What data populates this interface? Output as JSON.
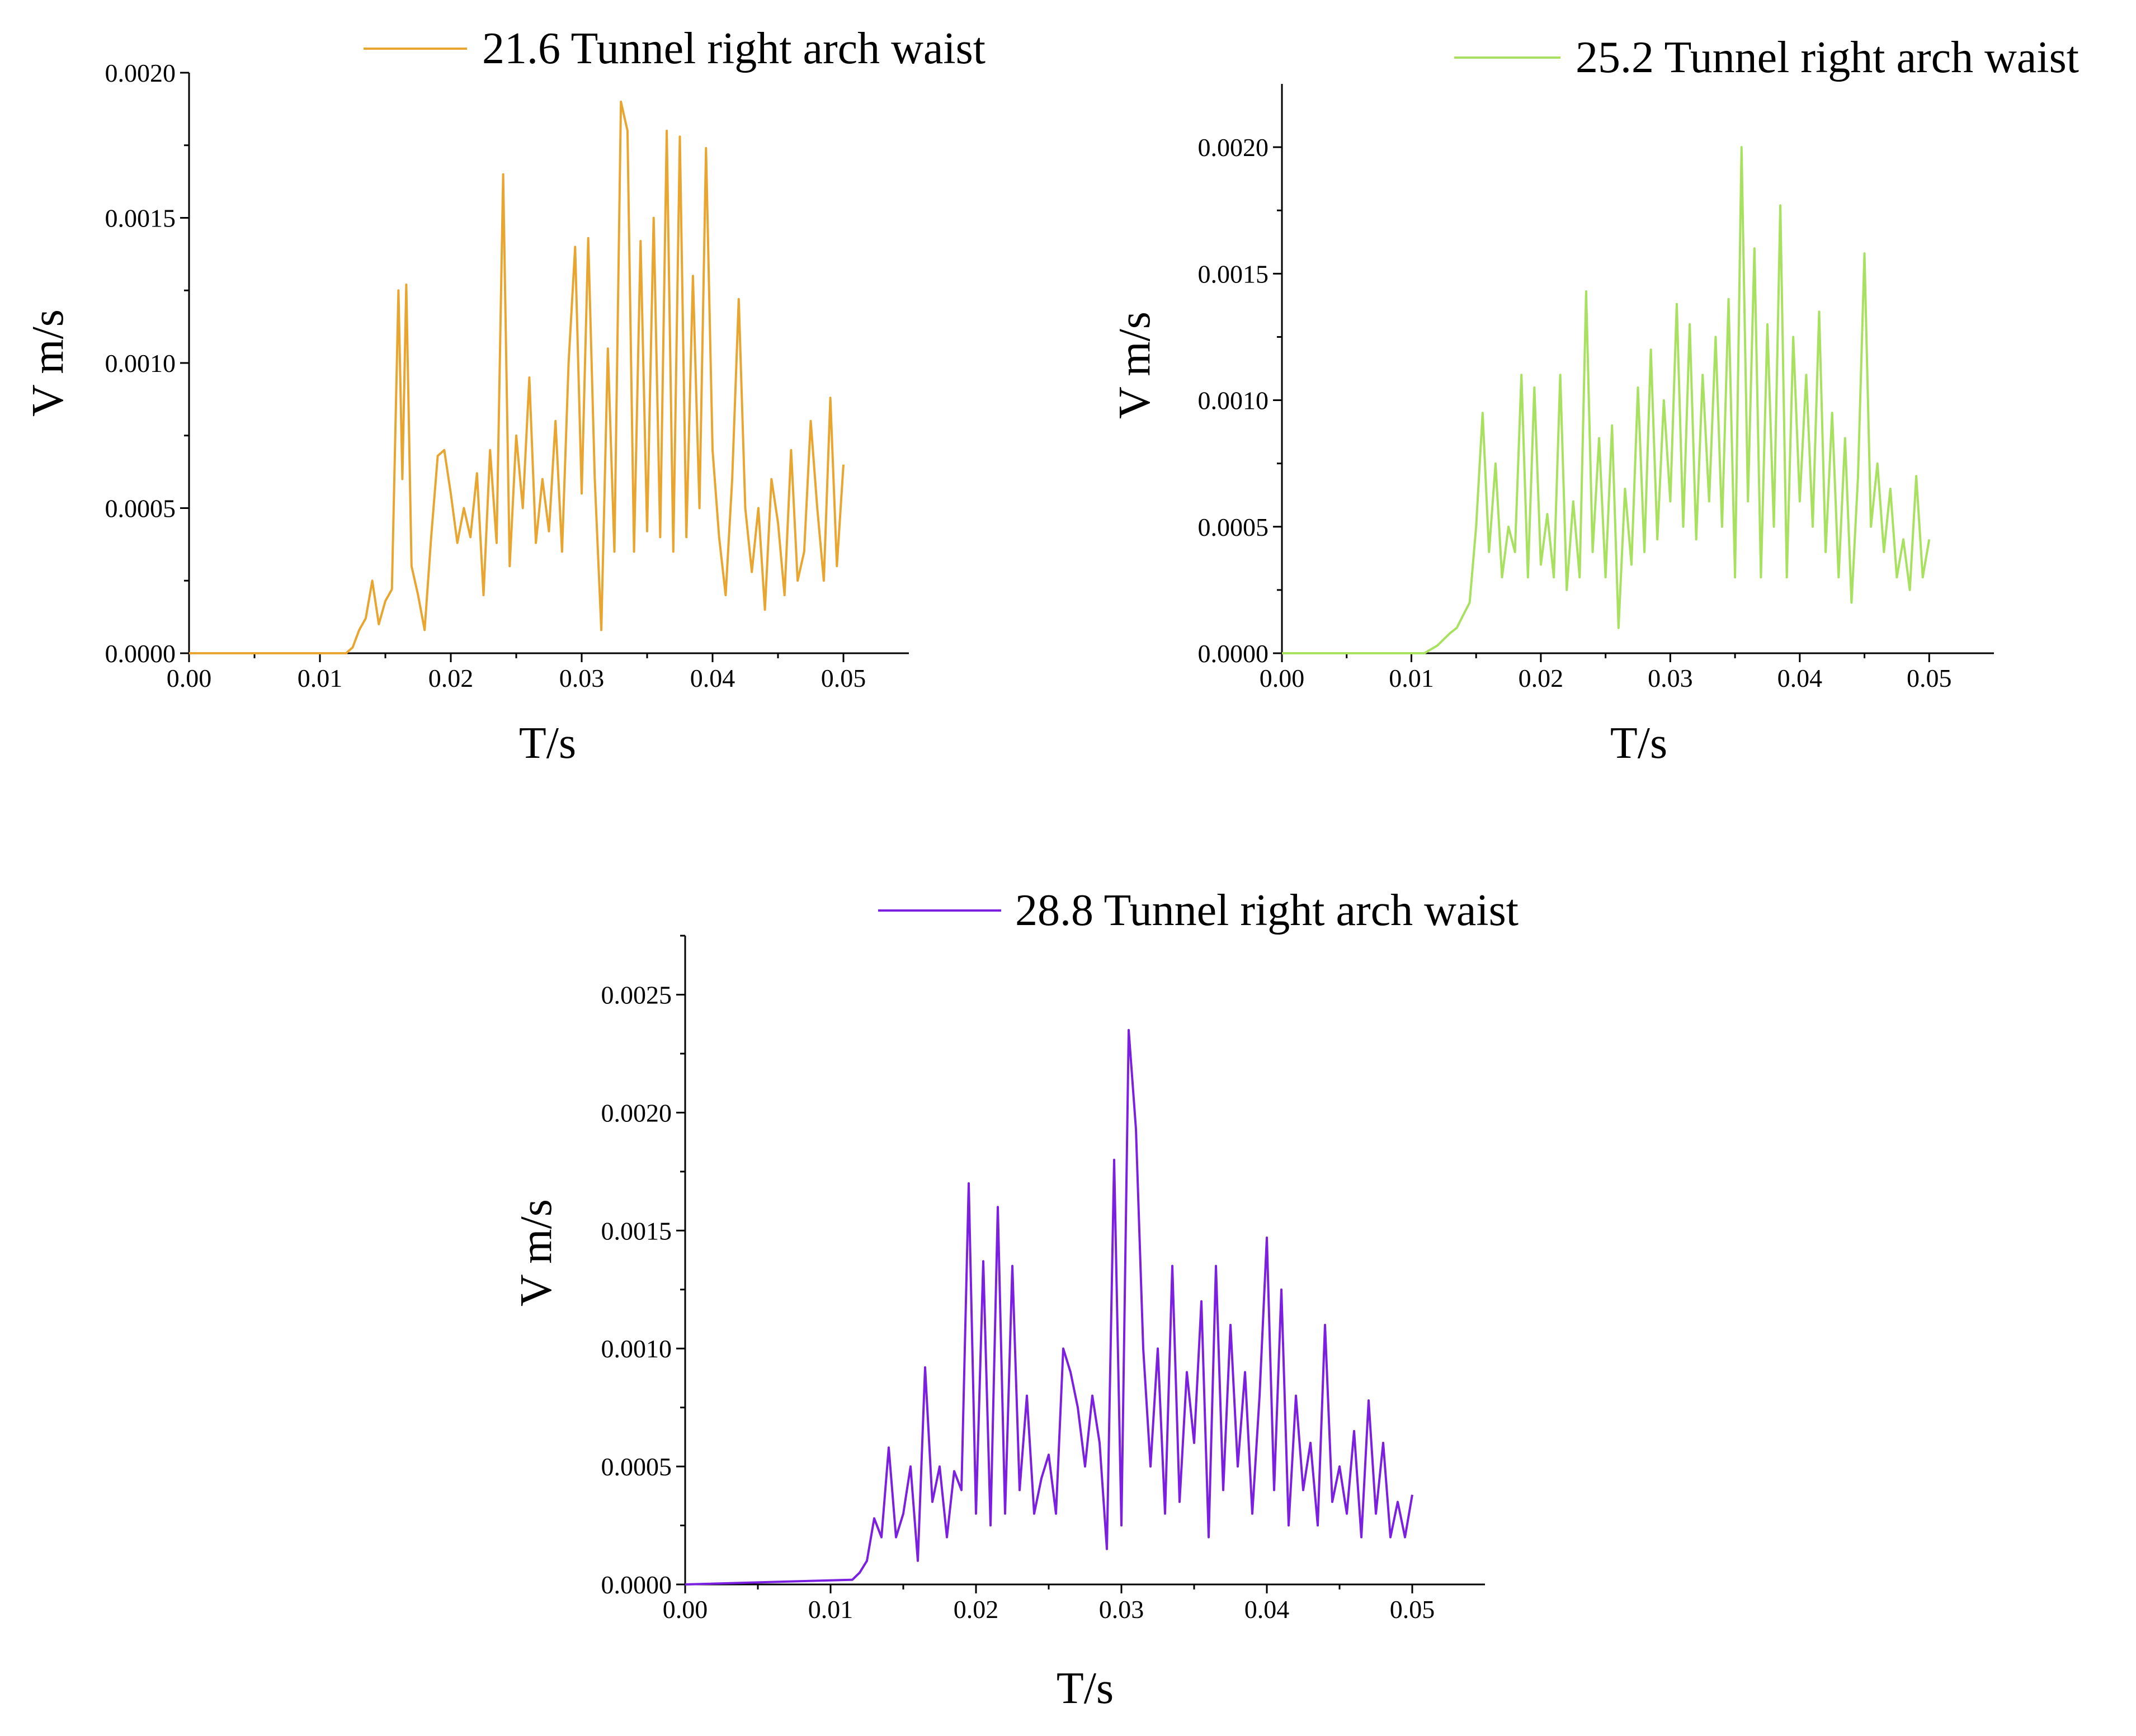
{
  "chart_data": [
    {
      "type": "line",
      "series": [
        {
          "name": "21.6 Tunnel right arch waist",
          "color": "#E8A530"
        }
      ],
      "xlabel": "T/s",
      "ylabel": "V m/s",
      "xlim": [
        0,
        0.055
      ],
      "ylim": [
        0,
        0.002
      ],
      "xticks": [
        0.0,
        0.01,
        0.02,
        0.03,
        0.04,
        0.05
      ],
      "xtick_labels": [
        "0.00",
        "0.01",
        "0.02",
        "0.03",
        "0.04",
        "0.05"
      ],
      "yticks": [
        0,
        0.0005,
        0.001,
        0.0015,
        0.002
      ],
      "ytick_labels": [
        "0.0000",
        "0.0005",
        "0.0010",
        "0.0015",
        "0.0020"
      ],
      "legend_position": "top",
      "x": [
        0,
        0.012,
        0.0125,
        0.013,
        0.0135,
        0.014,
        0.0145,
        0.015,
        0.0155,
        0.016,
        0.0163,
        0.0166,
        0.017,
        0.0175,
        0.018,
        0.0185,
        0.019,
        0.0195,
        0.02,
        0.0205,
        0.021,
        0.0215,
        0.022,
        0.0225,
        0.023,
        0.0235,
        0.024,
        0.0245,
        0.025,
        0.0255,
        0.026,
        0.0265,
        0.027,
        0.0275,
        0.028,
        0.0285,
        0.029,
        0.0295,
        0.03,
        0.0305,
        0.031,
        0.0315,
        0.032,
        0.0325,
        0.033,
        0.0335,
        0.034,
        0.0345,
        0.035,
        0.0355,
        0.036,
        0.0365,
        0.037,
        0.0375,
        0.038,
        0.0385,
        0.039,
        0.0395,
        0.04,
        0.0405,
        0.041,
        0.0415,
        0.042,
        0.0425,
        0.043,
        0.0435,
        0.044,
        0.0445,
        0.045,
        0.0455,
        0.046,
        0.0465,
        0.047,
        0.0475,
        0.048,
        0.0485,
        0.049,
        0.0495,
        0.05
      ],
      "y": [
        0,
        0,
        2e-05,
        8e-05,
        0.00012,
        0.00025,
        0.0001,
        0.00018,
        0.00022,
        0.00125,
        0.0006,
        0.00127,
        0.0003,
        0.0002,
        8e-05,
        0.0004,
        0.00068,
        0.0007,
        0.00055,
        0.00038,
        0.0005,
        0.0004,
        0.00062,
        0.0002,
        0.0007,
        0.00038,
        0.00165,
        0.0003,
        0.00075,
        0.0005,
        0.00095,
        0.00038,
        0.0006,
        0.00042,
        0.0008,
        0.00035,
        0.001,
        0.0014,
        0.00055,
        0.00143,
        0.0006,
        8e-05,
        0.00105,
        0.00035,
        0.0019,
        0.0018,
        0.00035,
        0.00142,
        0.00042,
        0.0015,
        0.0004,
        0.0018,
        0.00035,
        0.00178,
        0.0004,
        0.0013,
        0.0005,
        0.00174,
        0.0007,
        0.0004,
        0.0002,
        0.0006,
        0.00122,
        0.0005,
        0.00028,
        0.0005,
        0.00015,
        0.0006,
        0.00045,
        0.0002,
        0.0007,
        0.00025,
        0.00035,
        0.0008,
        0.0005,
        0.00025,
        0.00088,
        0.0003,
        0.00065
      ]
    },
    {
      "type": "line",
      "series": [
        {
          "name": "25.2 Tunnel right arch waist",
          "color": "#A8E05F"
        }
      ],
      "xlabel": "T/s",
      "ylabel": "V m/s",
      "xlim": [
        0,
        0.055
      ],
      "ylim": [
        0,
        0.00225
      ],
      "xticks": [
        0.0,
        0.01,
        0.02,
        0.03,
        0.04,
        0.05
      ],
      "xtick_labels": [
        "0.00",
        "0.01",
        "0.02",
        "0.03",
        "0.04",
        "0.05"
      ],
      "yticks": [
        0,
        0.0005,
        0.001,
        0.0015,
        0.002
      ],
      "ytick_labels": [
        "0.0000",
        "0.0005",
        "0.0010",
        "0.0015",
        "0.0020"
      ],
      "legend_position": "top-right",
      "x": [
        0,
        0.011,
        0.012,
        0.013,
        0.0135,
        0.014,
        0.0145,
        0.015,
        0.0155,
        0.016,
        0.0165,
        0.017,
        0.0175,
        0.018,
        0.0185,
        0.019,
        0.0195,
        0.02,
        0.0205,
        0.021,
        0.0215,
        0.022,
        0.0225,
        0.023,
        0.0235,
        0.024,
        0.0245,
        0.025,
        0.0255,
        0.026,
        0.0265,
        0.027,
        0.0275,
        0.028,
        0.0285,
        0.029,
        0.0295,
        0.03,
        0.0305,
        0.031,
        0.0315,
        0.032,
        0.0325,
        0.033,
        0.0335,
        0.034,
        0.0345,
        0.035,
        0.0355,
        0.036,
        0.0365,
        0.037,
        0.0375,
        0.038,
        0.0385,
        0.039,
        0.0395,
        0.04,
        0.0405,
        0.041,
        0.0415,
        0.042,
        0.0425,
        0.043,
        0.0435,
        0.044,
        0.0445,
        0.045,
        0.0455,
        0.046,
        0.0465,
        0.047,
        0.0475,
        0.048,
        0.0485,
        0.049,
        0.0495,
        0.05
      ],
      "y": [
        0,
        0,
        3e-05,
        8e-05,
        0.0001,
        0.00015,
        0.0002,
        0.0005,
        0.00095,
        0.0004,
        0.00075,
        0.0003,
        0.0005,
        0.0004,
        0.0011,
        0.0003,
        0.00105,
        0.00035,
        0.00055,
        0.0003,
        0.0011,
        0.00025,
        0.0006,
        0.0003,
        0.00143,
        0.0004,
        0.00085,
        0.0003,
        0.0009,
        0.0001,
        0.00065,
        0.00035,
        0.00105,
        0.0004,
        0.0012,
        0.00045,
        0.001,
        0.0006,
        0.00138,
        0.0005,
        0.0013,
        0.00045,
        0.0011,
        0.0006,
        0.00125,
        0.0005,
        0.0014,
        0.0003,
        0.002,
        0.0006,
        0.0016,
        0.0003,
        0.0013,
        0.0005,
        0.00177,
        0.0003,
        0.00125,
        0.0006,
        0.0011,
        0.0005,
        0.00135,
        0.0004,
        0.00095,
        0.0003,
        0.00085,
        0.0002,
        0.0007,
        0.00158,
        0.0005,
        0.00075,
        0.0004,
        0.00065,
        0.0003,
        0.00045,
        0.00025,
        0.0007,
        0.0003,
        0.00045
      ]
    },
    {
      "type": "line",
      "series": [
        {
          "name": "28.8 Tunnel right arch waist",
          "color": "#7B1FE0"
        }
      ],
      "xlabel": "T/s",
      "ylabel": "V m/s",
      "xlim": [
        0,
        0.055
      ],
      "ylim": [
        0,
        0.00275
      ],
      "xticks": [
        0.0,
        0.01,
        0.02,
        0.03,
        0.04,
        0.05
      ],
      "xtick_labels": [
        "0.00",
        "0.01",
        "0.02",
        "0.03",
        "0.04",
        "0.05"
      ],
      "yticks": [
        0,
        0.0005,
        0.001,
        0.0015,
        0.002,
        0.0025
      ],
      "ytick_labels": [
        "0.0000",
        "0.0005",
        "0.0010",
        "0.0015",
        "0.0020",
        "0.0025"
      ],
      "legend_position": "top",
      "x": [
        0,
        0.0115,
        0.012,
        0.0125,
        0.013,
        0.0135,
        0.014,
        0.0145,
        0.015,
        0.0155,
        0.016,
        0.0165,
        0.017,
        0.0175,
        0.018,
        0.0185,
        0.019,
        0.0195,
        0.02,
        0.0205,
        0.021,
        0.0215,
        0.022,
        0.0225,
        0.023,
        0.0235,
        0.024,
        0.0245,
        0.025,
        0.0255,
        0.026,
        0.0265,
        0.027,
        0.0275,
        0.028,
        0.0285,
        0.029,
        0.0295,
        0.03,
        0.0305,
        0.031,
        0.0315,
        0.032,
        0.0325,
        0.033,
        0.0335,
        0.034,
        0.0345,
        0.035,
        0.0355,
        0.036,
        0.0365,
        0.037,
        0.0375,
        0.038,
        0.0385,
        0.039,
        0.0395,
        0.04,
        0.0405,
        0.041,
        0.0415,
        0.042,
        0.0425,
        0.043,
        0.0435,
        0.044,
        0.0445,
        0.045,
        0.0455,
        0.046,
        0.0465,
        0.047,
        0.0475,
        0.048,
        0.0485,
        0.049,
        0.0495,
        0.05
      ],
      "y": [
        0,
        2e-05,
        5e-05,
        0.0001,
        0.00028,
        0.0002,
        0.00058,
        0.0002,
        0.0003,
        0.0005,
        0.0001,
        0.00092,
        0.00035,
        0.0005,
        0.0002,
        0.00048,
        0.0004,
        0.0017,
        0.0003,
        0.00137,
        0.00025,
        0.0016,
        0.0003,
        0.00135,
        0.0004,
        0.0008,
        0.0003,
        0.00045,
        0.00055,
        0.0003,
        0.001,
        0.0009,
        0.00075,
        0.0005,
        0.0008,
        0.0006,
        0.00015,
        0.0018,
        0.00025,
        0.00235,
        0.00193,
        0.001,
        0.0005,
        0.001,
        0.0003,
        0.00135,
        0.00035,
        0.0009,
        0.0006,
        0.0012,
        0.0002,
        0.00135,
        0.0004,
        0.0011,
        0.0005,
        0.0009,
        0.0003,
        0.0008,
        0.00147,
        0.0004,
        0.00125,
        0.00025,
        0.0008,
        0.0004,
        0.0006,
        0.00025,
        0.0011,
        0.00035,
        0.0005,
        0.0003,
        0.00065,
        0.0002,
        0.00078,
        0.0003,
        0.0006,
        0.0002,
        0.00035,
        0.0002,
        0.00038
      ]
    }
  ]
}
